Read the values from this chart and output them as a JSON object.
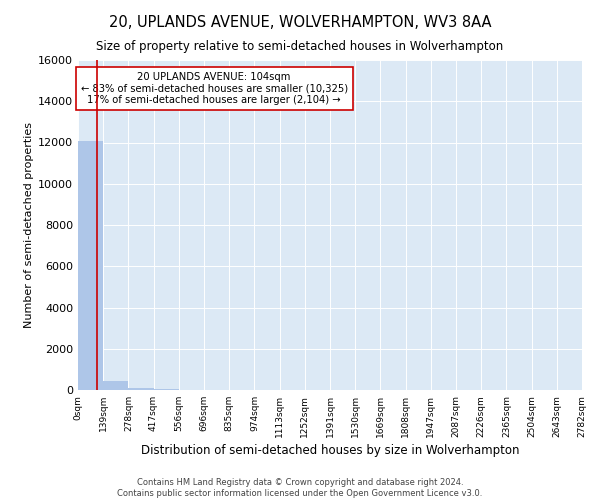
{
  "title": "20, UPLANDS AVENUE, WOLVERHAMPTON, WV3 8AA",
  "subtitle": "Size of property relative to semi-detached houses in Wolverhampton",
  "xlabel": "Distribution of semi-detached houses by size in Wolverhampton",
  "ylabel": "Number of semi-detached properties",
  "property_size": 104,
  "annotation_title": "20 UPLANDS AVENUE: 104sqm",
  "annotation_line1": "← 83% of semi-detached houses are smaller (10,325)",
  "annotation_line2": "17% of semi-detached houses are larger (2,104) →",
  "footer_line1": "Contains HM Land Registry data © Crown copyright and database right 2024.",
  "footer_line2": "Contains public sector information licensed under the Open Government Licence v3.0.",
  "bar_color": "#aec6e8",
  "vline_color": "#cc0000",
  "annotation_box_facecolor": "#ffffff",
  "annotation_box_edgecolor": "#cc0000",
  "background_color": "#dce9f5",
  "ylim": [
    0,
    16000
  ],
  "yticks": [
    0,
    2000,
    4000,
    6000,
    8000,
    10000,
    12000,
    14000,
    16000
  ],
  "bin_edges": [
    0,
    139,
    278,
    417,
    556,
    696,
    835,
    974,
    1113,
    1252,
    1391,
    1530,
    1669,
    1808,
    1947,
    2087,
    2226,
    2365,
    2504,
    2643,
    2782
  ],
  "bin_labels": [
    "0sqm",
    "139sqm",
    "278sqm",
    "417sqm",
    "556sqm",
    "696sqm",
    "835sqm",
    "974sqm",
    "1113sqm",
    "1252sqm",
    "1391sqm",
    "1530sqm",
    "1669sqm",
    "1808sqm",
    "1947sqm",
    "2087sqm",
    "2226sqm",
    "2365sqm",
    "2504sqm",
    "2643sqm",
    "2782sqm"
  ],
  "bar_heights": [
    12050,
    420,
    90,
    40,
    20,
    10,
    6,
    4,
    2,
    1,
    1,
    1,
    0,
    0,
    0,
    0,
    0,
    0,
    0,
    0
  ]
}
